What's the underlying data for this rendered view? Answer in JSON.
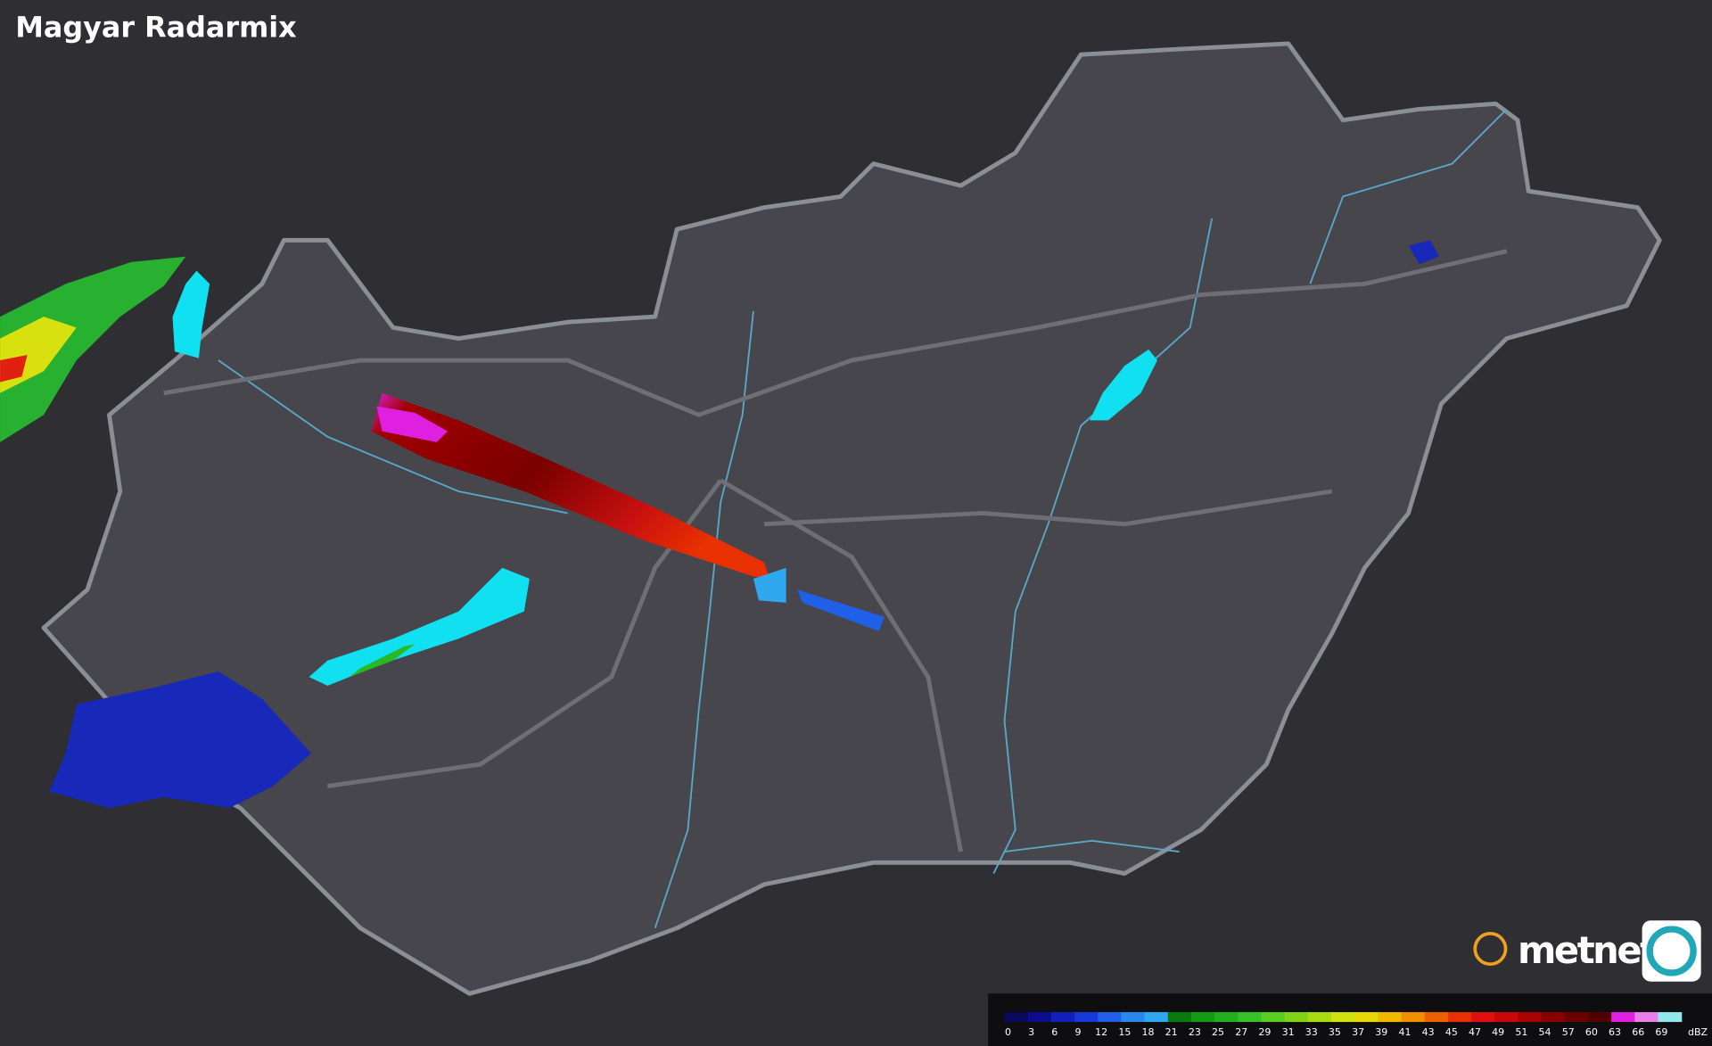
{
  "title": "Magyar Radarmix",
  "logo": "metnet",
  "legend": {
    "unit": "dBZ",
    "labels": [
      0,
      3,
      6,
      9,
      12,
      15,
      18,
      21,
      23,
      25,
      27,
      29,
      31,
      33,
      35,
      37,
      39,
      41,
      43,
      45,
      47,
      49,
      51,
      54,
      57,
      60,
      63,
      66,
      69
    ],
    "colors": [
      "#0a0a5a",
      "#0c0c8c",
      "#1020b8",
      "#1838d8",
      "#2060e8",
      "#2888ee",
      "#30a8f0",
      "#0a7a10",
      "#149a14",
      "#20b020",
      "#38c028",
      "#58cc20",
      "#80d418",
      "#a8dc10",
      "#d0e010",
      "#e8d808",
      "#f0b800",
      "#f09000",
      "#ec6000",
      "#e83000",
      "#e01010",
      "#c80808",
      "#a80404",
      "#880000",
      "#6a0000",
      "#500000",
      "#e020e0",
      "#e880e8",
      "#90e8ec"
    ]
  }
}
